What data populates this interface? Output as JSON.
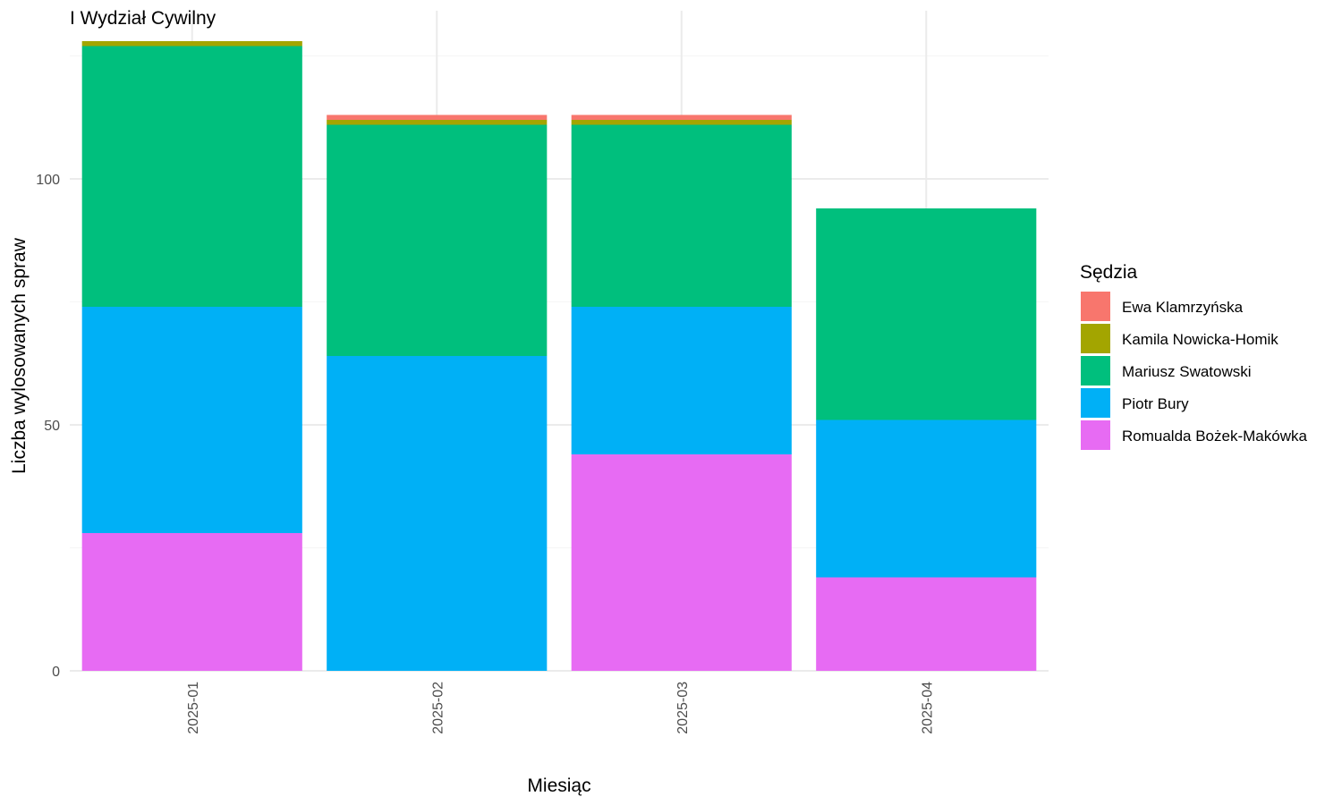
{
  "chart_data": {
    "type": "bar",
    "stacked": true,
    "title": "I Wydział Cywilny",
    "xlabel": "Miesiąc",
    "ylabel": "Liczba wylosowanych spraw",
    "ylim": [
      0,
      128
    ],
    "yticks": [
      0,
      50,
      100
    ],
    "grid": true,
    "legend_title": "Sędzia",
    "legend_position": "right",
    "categories": [
      "2025-01",
      "2025-02",
      "2025-03",
      "2025-04"
    ],
    "series": [
      {
        "name": "Romualda Bożek-Makówka",
        "color": "#E76BF3",
        "values": [
          28,
          0,
          44,
          19
        ]
      },
      {
        "name": "Piotr Bury",
        "color": "#00B0F6",
        "values": [
          46,
          64,
          30,
          32
        ]
      },
      {
        "name": "Mariusz Swatowski",
        "color": "#00BF7D",
        "values": [
          53,
          47,
          37,
          43
        ]
      },
      {
        "name": "Kamila Nowicka-Homik",
        "color": "#A3A500",
        "values": [
          1,
          1,
          1,
          0
        ]
      },
      {
        "name": "Ewa Klamrzyńska",
        "color": "#F8766D",
        "values": [
          0,
          1,
          1,
          0
        ]
      }
    ],
    "legend_order": [
      "Ewa Klamrzyńska",
      "Kamila Nowicka-Homik",
      "Mariusz Swatowski",
      "Piotr Bury",
      "Romualda Bożek-Makówka"
    ]
  }
}
